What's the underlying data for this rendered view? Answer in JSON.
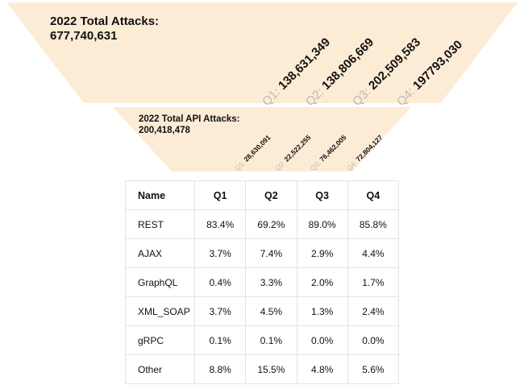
{
  "colors": {
    "funnel": "#fdecd5",
    "quarter_label": "#b9b9b9",
    "text": "#111111",
    "grid": "#e4e4e4"
  },
  "chart_data": [
    {
      "type": "bar",
      "title": "2022 Total Attacks:",
      "total": "677,740,631",
      "categories": [
        "Q1:",
        "Q2:",
        "Q3:",
        "Q4:"
      ],
      "labels": [
        "138,631,349",
        "138,806,669",
        "202,509,583",
        "197793,030"
      ]
    },
    {
      "type": "bar",
      "title": "2022 Total API Attacks:",
      "total": "200,418,478",
      "categories": [
        "Q1:",
        "Q2:",
        "Q3:",
        "Q4:"
      ],
      "labels": [
        "28,630,091",
        "22,522,255",
        "76,462,005",
        "72,804,127"
      ]
    },
    {
      "type": "table",
      "columns": [
        "Name",
        "Q1",
        "Q2",
        "Q3",
        "Q4"
      ],
      "rows": [
        [
          "REST",
          "83.4%",
          "69.2%",
          "89.0%",
          "85.8%"
        ],
        [
          "AJAX",
          "3.7%",
          "7.4%",
          "2.9%",
          "4.4%"
        ],
        [
          "GraphQL",
          "0.4%",
          "3.3%",
          "2.0%",
          "1.7%"
        ],
        [
          "XML_SOAP",
          "3.7%",
          "4.5%",
          "1.3%",
          "2.4%"
        ],
        [
          "gRPC",
          "0.1%",
          "0.1%",
          "0.0%",
          "0.0%"
        ],
        [
          "Other",
          "8.8%",
          "15.5%",
          "4.8%",
          "5.6%"
        ]
      ]
    }
  ]
}
